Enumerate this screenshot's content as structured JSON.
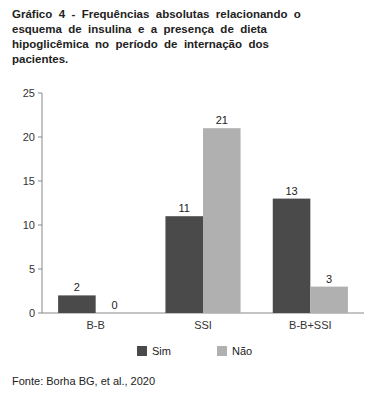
{
  "chart_data": {
    "type": "bar",
    "title": "Gráfico  4  -  Frequências  absolutas  relacionando  o\nesquema  de  insulina  e  a  presença  de  dieta\nhipoglicêmica  no  período  de  internação  dos\npacientes.",
    "categories": [
      "B-B",
      "SSI",
      "B-B+SSI"
    ],
    "series": [
      {
        "name": "Sim",
        "color": "#4a4a4a",
        "values": [
          2,
          11,
          13
        ]
      },
      {
        "name": "Não",
        "color": "#b0b0b0",
        "values": [
          0,
          21,
          3
        ]
      }
    ],
    "ylim": [
      0,
      25
    ],
    "yticks": [
      0,
      5,
      10,
      15,
      20,
      25
    ],
    "data_labels": true,
    "legend": "bottom",
    "grid": false,
    "annotations": [
      "Fonte: Borha BG, et al., 2020"
    ]
  }
}
